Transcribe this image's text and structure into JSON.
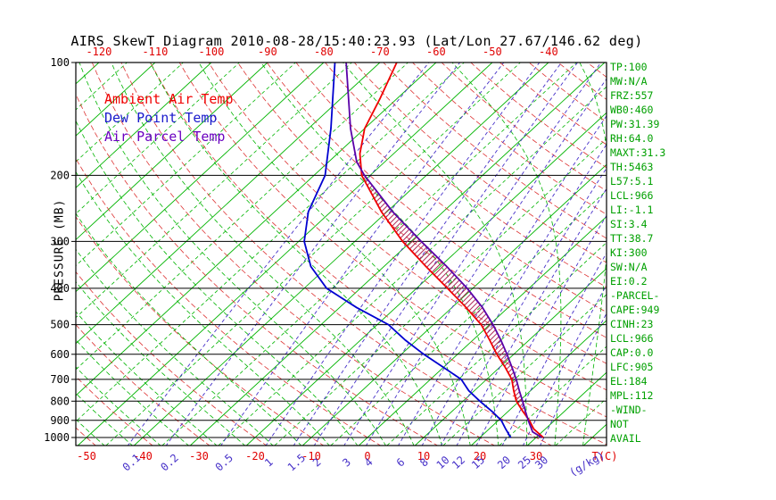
{
  "title": "AIRS SkewT Diagram 2010-08-28/15:40:23.93 (Lat/Lon 27.67/146.62 deg)",
  "legend": {
    "items": [
      {
        "label": "Ambient Air Temp",
        "color": "#f00000"
      },
      {
        "label": "Dew Point Temp",
        "color": "#1a1acc"
      },
      {
        "label": "Air Parcel Temp",
        "color": "#6a00c0"
      }
    ]
  },
  "axes": {
    "pressure_axis_label": "PRESSURE (MB)",
    "pressure_ticks": [
      100,
      200,
      300,
      400,
      500,
      600,
      700,
      800,
      900,
      1000
    ],
    "top_temperature_ticks": [
      -120,
      -110,
      -100,
      -90,
      -80,
      -70,
      -60,
      -50,
      -40
    ],
    "bottom_temperature_ticks": [
      -50,
      -40,
      -30,
      -20,
      -10,
      0,
      10,
      20,
      30
    ],
    "temperature_unit_label": "T(C)",
    "mixing_ratio_ticks": [
      0.1,
      0.2,
      0.5,
      1,
      1.5,
      2,
      3,
      4,
      6,
      8,
      10,
      12,
      15,
      20,
      25,
      30
    ],
    "mixing_ratio_unit_label": "(g/kg)"
  },
  "stats_panel": {
    "lines": [
      "TP:100",
      "MW:N/A",
      "FRZ:557",
      "WB0:460",
      "PW:31.39",
      "RH:64.0",
      "MAXT:31.3",
      "TH:5463",
      "L57:5.1",
      "LCL:966",
      "LI:-1.1",
      "SI:3.4",
      "TT:38.7",
      "KI:300",
      "SW:N/A",
      "EI:0.2",
      "-PARCEL-",
      "CAPE:949",
      "CINH:23",
      "LCL:966",
      "CAP:0.0",
      "LFC:905",
      "EL:184",
      "MPL:112",
      "-WIND-",
      "NOT",
      "AVAIL"
    ]
  },
  "colors": {
    "isotherm": "#00b400",
    "moist_adiabat": "#00b400",
    "dry_adiabat": "#dd3333",
    "mixing_line": "#4630c8",
    "mixing_label": "#4630c8",
    "temp_tick": "#e00000",
    "pressure_line": "#000000",
    "frame": "#000000",
    "hatch": "#b02858",
    "stats_text": "#00a000"
  },
  "chart_data": {
    "type": "line",
    "title": "AIRS SkewT Diagram",
    "timestamp": "2010-08-28/15:40:23.93",
    "lat_lon": "27.67/146.62 deg",
    "x_axis_label": "Temperature (C)",
    "y_axis_label": "Pressure (MB)",
    "y_scale": "log",
    "ylim": [
      100,
      1050
    ],
    "series": [
      {
        "name": "Ambient Air Temp",
        "color": "#f00000",
        "points": [
          [
            1000,
            31.3
          ],
          [
            950,
            28.0
          ],
          [
            900,
            25.5
          ],
          [
            850,
            22.5
          ],
          [
            800,
            19.5
          ],
          [
            750,
            17.0
          ],
          [
            700,
            14.5
          ],
          [
            650,
            11.0
          ],
          [
            600,
            7.0
          ],
          [
            550,
            3.0
          ],
          [
            500,
            -1.5
          ],
          [
            450,
            -7.5
          ],
          [
            400,
            -14.5
          ],
          [
            350,
            -22.5
          ],
          [
            300,
            -31.5
          ],
          [
            250,
            -41.0
          ],
          [
            200,
            -51.5
          ],
          [
            175,
            -56.0
          ],
          [
            150,
            -60.0
          ],
          [
            125,
            -63.0
          ],
          [
            100,
            -67.0
          ]
        ]
      },
      {
        "name": "Dew Point Temp",
        "color": "#0000d0",
        "points": [
          [
            1000,
            25.5
          ],
          [
            950,
            23.0
          ],
          [
            900,
            20.5
          ],
          [
            850,
            17.0
          ],
          [
            800,
            13.0
          ],
          [
            750,
            9.0
          ],
          [
            700,
            5.5
          ],
          [
            650,
            0.0
          ],
          [
            600,
            -6.0
          ],
          [
            550,
            -12.0
          ],
          [
            500,
            -18.0
          ],
          [
            450,
            -27.0
          ],
          [
            400,
            -36.0
          ],
          [
            350,
            -43.0
          ],
          [
            300,
            -49.0
          ],
          [
            250,
            -54.0
          ],
          [
            200,
            -58.0
          ],
          [
            150,
            -66.0
          ],
          [
            100,
            -78.0
          ]
        ]
      },
      {
        "name": "Air Parcel Temp",
        "color": "#5a00a8",
        "points": [
          [
            1000,
            31.0
          ],
          [
            966,
            28.3
          ],
          [
            950,
            27.6
          ],
          [
            900,
            25.3
          ],
          [
            850,
            23.0
          ],
          [
            800,
            20.6
          ],
          [
            750,
            18.0
          ],
          [
            700,
            15.3
          ],
          [
            650,
            12.2
          ],
          [
            600,
            8.8
          ],
          [
            550,
            5.0
          ],
          [
            500,
            0.6
          ],
          [
            450,
            -4.6
          ],
          [
            400,
            -11.0
          ],
          [
            350,
            -18.8
          ],
          [
            300,
            -28.2
          ],
          [
            250,
            -39.0
          ],
          [
            200,
            -51.0
          ],
          [
            184,
            -55.0
          ],
          [
            150,
            -62.5
          ],
          [
            100,
            -76.0
          ]
        ]
      }
    ],
    "cape_region": {
      "lfc_pressure_mb": 905,
      "el_pressure_mb": 184
    },
    "background": {
      "isotherm_range_c": [
        -130,
        45
      ],
      "isotherm_step_c": 5,
      "dry_adiabat_theta_range_c": [
        -50,
        200
      ],
      "dry_adiabat_step_c": 10,
      "moist_adiabat_range_c": [
        -55,
        40
      ],
      "moist_adiabat_step_c": 5
    }
  }
}
